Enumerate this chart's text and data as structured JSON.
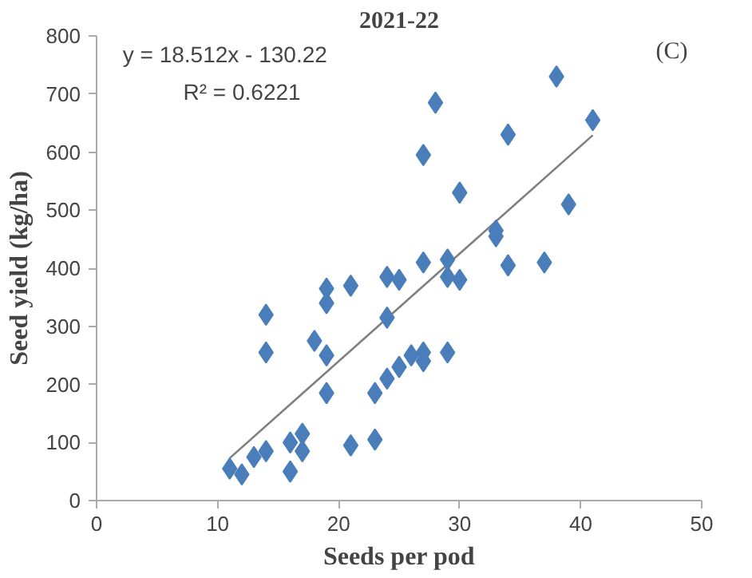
{
  "chart_data": {
    "type": "scatter",
    "title": "2021-22",
    "xlabel": "Seeds per pod",
    "ylabel": "Seed yield (kg/ha)",
    "xlim": [
      0,
      50
    ],
    "xticks": [
      0,
      10,
      20,
      30,
      40,
      50
    ],
    "ylim": [
      0,
      800
    ],
    "yticks": [
      0,
      100,
      200,
      300,
      400,
      500,
      600,
      700,
      800
    ],
    "grid": false,
    "annotations": [
      "y = 18.512x - 130.22",
      "R² = 0.6221",
      "(C)"
    ],
    "series": [
      {
        "marker": "diamond",
        "color": "#4a7ebb",
        "x": [
          11,
          12,
          13,
          14,
          14,
          14,
          16,
          16,
          17,
          17,
          18,
          19,
          19,
          19,
          19,
          21,
          21,
          23,
          23,
          24,
          24,
          24,
          25,
          25,
          26,
          27,
          27,
          27,
          27,
          28,
          29,
          29,
          29,
          30,
          30,
          33,
          33,
          34,
          34,
          37,
          38,
          39,
          41
        ],
        "values": [
          55,
          45,
          75,
          85,
          320,
          255,
          50,
          100,
          115,
          85,
          275,
          365,
          340,
          250,
          185,
          370,
          95,
          105,
          185,
          385,
          315,
          210,
          380,
          230,
          250,
          595,
          410,
          255,
          240,
          685,
          415,
          385,
          255,
          530,
          380,
          465,
          455,
          630,
          405,
          410,
          730,
          510,
          655
        ]
      },
      {
        "type": "line",
        "color": "#7f7f7f",
        "x": [
          11,
          41
        ],
        "values": [
          73,
          629
        ]
      }
    ]
  }
}
